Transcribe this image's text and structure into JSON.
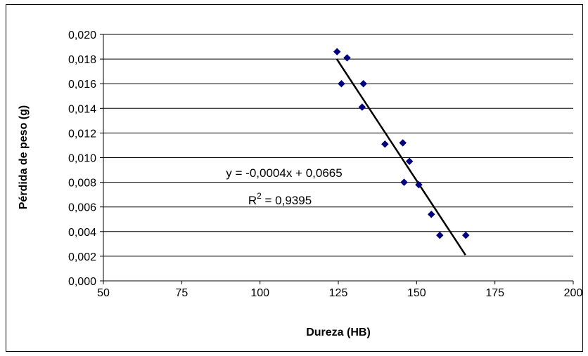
{
  "chart_data": {
    "type": "scatter",
    "title": "",
    "xlabel": "Dureza (HB)",
    "ylabel": "Pérdida de peso (g)",
    "xlim": [
      50,
      200
    ],
    "ylim": [
      0,
      0.02
    ],
    "x_ticks": [
      "50",
      "75",
      "100",
      "125",
      "150",
      "175",
      "200"
    ],
    "y_ticks": [
      "0,000",
      "0,002",
      "0,004",
      "0,006",
      "0,008",
      "0,010",
      "0,012",
      "0,014",
      "0,016",
      "0,018",
      "0,020"
    ],
    "grid": "horizontal",
    "legend": "none",
    "series": [
      {
        "marker": "diamond",
        "color": "#000080",
        "points": [
          {
            "x": 124.6,
            "y": 0.0186
          },
          {
            "x": 127.8,
            "y": 0.0181
          },
          {
            "x": 126.0,
            "y": 0.016
          },
          {
            "x": 133.0,
            "y": 0.016
          },
          {
            "x": 132.6,
            "y": 0.0141
          },
          {
            "x": 139.9,
            "y": 0.0111
          },
          {
            "x": 145.6,
            "y": 0.0112
          },
          {
            "x": 147.7,
            "y": 0.0097
          },
          {
            "x": 146.0,
            "y": 0.008
          },
          {
            "x": 150.7,
            "y": 0.0078
          },
          {
            "x": 154.7,
            "y": 0.0054
          },
          {
            "x": 157.4,
            "y": 0.0037
          },
          {
            "x": 165.7,
            "y": 0.0037
          }
        ]
      }
    ],
    "trendline": {
      "type": "linear",
      "color": "#000000",
      "x_range": [
        124.5,
        165.6
      ],
      "y_at_start": 0.018,
      "y_at_end": 0.0021,
      "equation": "y = -0,0004x + 0,0665",
      "r2_label": "R",
      "r2_sup": "2",
      "r2_value": " = 0,9395"
    }
  }
}
